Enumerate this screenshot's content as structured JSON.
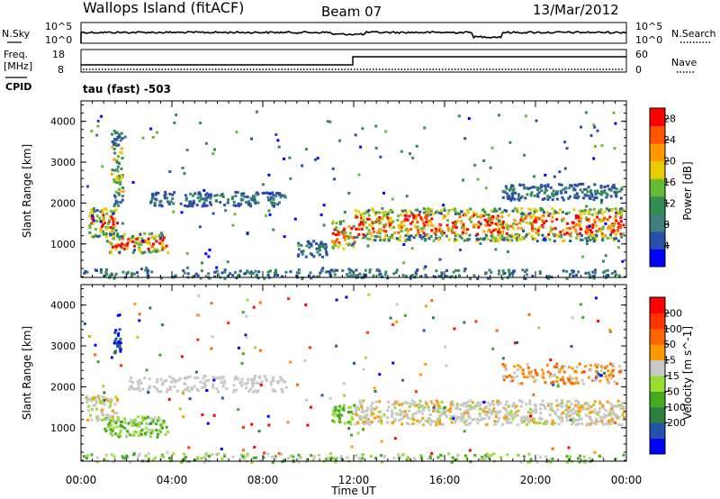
{
  "header": {
    "station": "Wallops Island (fitACF)",
    "beam": "Beam 07",
    "date": "13/Mar/2012"
  },
  "top_panels": {
    "nsky_label": "N.Sky",
    "nsearch_label": "N.Search",
    "nsky_ticks": [
      "10^5",
      "10^0"
    ],
    "nsearch_ticks": [
      "10^5",
      "10^0"
    ],
    "freq_label_1": "Freq.",
    "freq_label_2": "[MHz]",
    "freq_ticks": [
      "18",
      "8"
    ],
    "nave_label": "Nave",
    "nave_ticks": [
      "60",
      "0"
    ],
    "cpid_label": "CPID",
    "cpid_text": "tau (fast) -503"
  },
  "colors": {
    "power": [
      "#0000ff",
      "#2a4fa8",
      "#3f7f7f",
      "#2f8f4f",
      "#66bb33",
      "#e6cc00",
      "#ff9900",
      "#ff5500",
      "#ff0000"
    ],
    "velocity": [
      "#0000ff",
      "#2255aa",
      "#2f7f3f",
      "#44aa22",
      "#99dd33",
      "#c8c8c8",
      "#ff9900",
      "#ff6600",
      "#ff3300",
      "#ff0000"
    ]
  },
  "chart_data": [
    {
      "type": "heatmap",
      "name": "power",
      "xlabel": "",
      "ylabel": "Slant Range [km]",
      "ylim": [
        180,
        4500
      ],
      "xlim": [
        0,
        24
      ],
      "yticks": [
        1000,
        2000,
        3000,
        4000
      ],
      "colorbar_label": "Power [dB]",
      "colorbar_ticks": [
        4,
        8,
        12,
        16,
        20,
        24,
        28
      ],
      "colorbar_range": [
        0,
        30
      ],
      "features": [
        {
          "t": [
            0.3,
            1.6
          ],
          "r": [
            1200,
            1900
          ],
          "level": "high"
        },
        {
          "t": [
            1.2,
            3.8
          ],
          "r": [
            800,
            1300
          ],
          "level": "high"
        },
        {
          "t": [
            1.3,
            1.8
          ],
          "r": [
            1900,
            3800
          ],
          "level": "mid"
        },
        {
          "t": [
            3.0,
            9.0
          ],
          "r": [
            1950,
            2300
          ],
          "level": "low"
        },
        {
          "t": [
            9.5,
            10.8
          ],
          "r": [
            700,
            1100
          ],
          "level": "low"
        },
        {
          "t": [
            11.0,
            12.0
          ],
          "r": [
            900,
            1600
          ],
          "level": "high"
        },
        {
          "t": [
            12.0,
            24.0
          ],
          "r": [
            1100,
            1900
          ],
          "level": "high"
        },
        {
          "t": [
            18.5,
            23.8
          ],
          "r": [
            2100,
            2500
          ],
          "level": "low"
        }
      ]
    },
    {
      "type": "heatmap",
      "name": "velocity",
      "xlabel": "Time UT",
      "ylabel": "Slant Range [km]",
      "ylim": [
        180,
        4500
      ],
      "xlim": [
        0,
        24
      ],
      "xticks": [
        "00:00",
        "04:00",
        "08:00",
        "12:00",
        "16:00",
        "20:00",
        "00:00"
      ],
      "yticks": [
        1000,
        2000,
        3000,
        4000
      ],
      "colorbar_label": "Velocity [m s^-1]",
      "colorbar_ticks": [
        200,
        100,
        50,
        15,
        -15,
        -50,
        -100,
        -200
      ],
      "features": [
        {
          "t": [
            0.2,
            1.6
          ],
          "r": [
            1200,
            1800
          ],
          "v": "gray"
        },
        {
          "t": [
            1.0,
            3.8
          ],
          "r": [
            800,
            1300
          ],
          "v": "green"
        },
        {
          "t": [
            1.4,
            1.7
          ],
          "r": [
            2800,
            3800
          ],
          "v": "blue"
        },
        {
          "t": [
            11.0,
            12.0
          ],
          "r": [
            1100,
            1600
          ],
          "v": "green"
        },
        {
          "t": [
            12.0,
            24.0
          ],
          "r": [
            1100,
            1700
          ],
          "v": "gray"
        },
        {
          "t": [
            22.6,
            23.0
          ],
          "r": [
            2200,
            2400
          ],
          "v": "blue"
        }
      ]
    }
  ]
}
